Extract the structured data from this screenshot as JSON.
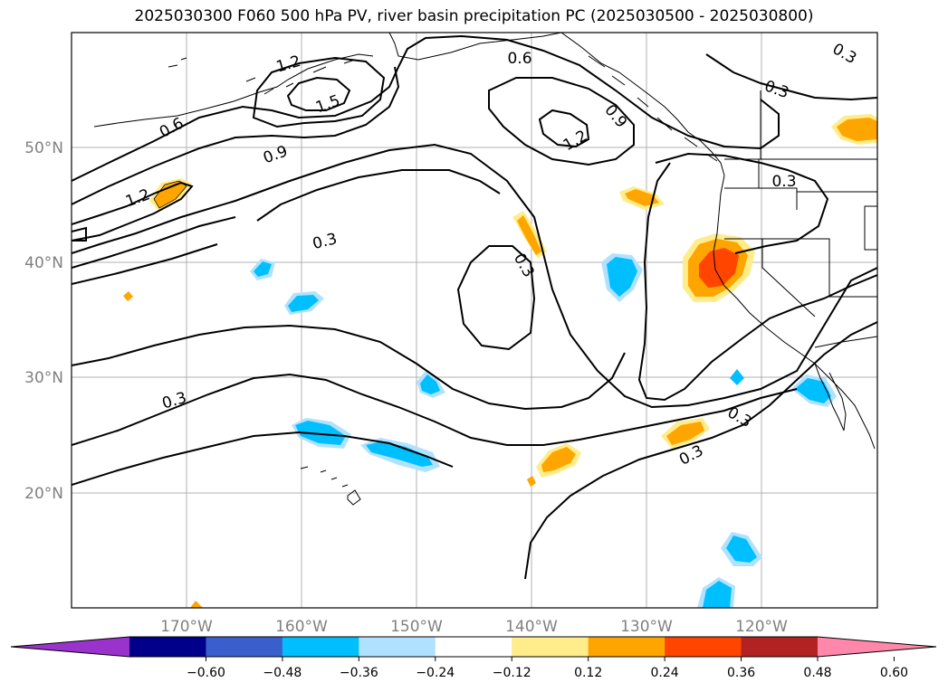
{
  "title": "2025030300 F060 500 hPa PV, river basin precipitation PC (2025030500 - 2025030800)",
  "map": {
    "lon_labels": [
      "170°W",
      "160°W",
      "150°W",
      "140°W",
      "130°W",
      "120°W"
    ],
    "lat_labels": [
      "50°N",
      "40°N",
      "30°N",
      "20°N"
    ],
    "contour_labels": [
      "0.3",
      "0.3",
      "0.3",
      "0.3",
      "0.3",
      "0.3",
      "0.3",
      "0.3",
      "0.6",
      "0.6",
      "0.9",
      "0.9",
      "1.2",
      "1.2",
      "1.2",
      "1.5"
    ]
  },
  "colorbar": {
    "ticks": [
      "−0.60",
      "−0.48",
      "−0.36",
      "−0.24",
      "−0.12",
      "0.12",
      "0.24",
      "0.36",
      "0.48",
      "0.60"
    ],
    "colors": [
      "#9933cc",
      "#00008b",
      "#3a5fcd",
      "#00bfff",
      "#b0e2ff",
      "#ffffff",
      "#ffec8b",
      "#ffa500",
      "#ff4500",
      "#b22222",
      "#ff88aa"
    ]
  },
  "colors": {
    "contour": "#000000",
    "grid": "#b0b0b0",
    "label": "#808080",
    "shade_pos_1": "#ffec8b",
    "shade_pos_2": "#ffa500",
    "shade_pos_3": "#ff4500",
    "shade_neg_1": "#b0e2ff",
    "shade_neg_2": "#00bfff"
  }
}
